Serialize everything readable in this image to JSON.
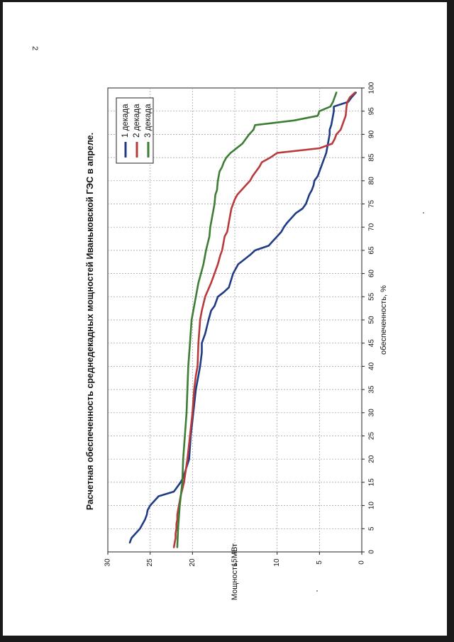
{
  "page": {
    "number": "2"
  },
  "chart_data": {
    "type": "line",
    "title": "Расчетная обеспеченность среднедекадных мощностей Иваньковской ГЭС в апреле.",
    "xlabel": "обеспеченность, %",
    "ylabel": "Мощность, МВт",
    "xlim": [
      0,
      100
    ],
    "ylim": [
      0,
      30
    ],
    "xticks": [
      0,
      5,
      10,
      15,
      20,
      25,
      30,
      35,
      40,
      45,
      50,
      55,
      60,
      65,
      70,
      75,
      80,
      85,
      90,
      95,
      100
    ],
    "yticks": [
      0,
      5,
      10,
      15,
      20,
      25,
      30
    ],
    "grid": true,
    "legend_position": "top-right",
    "colors": {
      "s1": "#1f3b85",
      "s2": "#b83a3a",
      "s3": "#3e7d35",
      "grid": "#9a9a9a"
    },
    "series": [
      {
        "name": "1 декада",
        "x": [
          2,
          3,
          4,
          5,
          6,
          7,
          8,
          9,
          10,
          11,
          12,
          13,
          14,
          15,
          16,
          20,
          25,
          30,
          35,
          40,
          43,
          45,
          47,
          50,
          52,
          53,
          55,
          56,
          57,
          60,
          62,
          63,
          64,
          65,
          66,
          67,
          68,
          69,
          70,
          71,
          72,
          73,
          74,
          75,
          76,
          77,
          78,
          79,
          80,
          81,
          82,
          83,
          84,
          85,
          86,
          87,
          88,
          89,
          90,
          91,
          92,
          93,
          94,
          95,
          96,
          97,
          98,
          99
        ],
        "values": [
          27.4,
          27.2,
          26.7,
          26.2,
          25.9,
          25.6,
          25.4,
          25.3,
          25.0,
          24.5,
          24.0,
          22.2,
          21.8,
          21.4,
          21.1,
          20.4,
          20.2,
          19.9,
          19.6,
          19.1,
          18.9,
          18.9,
          18.5,
          18.1,
          17.8,
          17.4,
          17.0,
          16.3,
          15.7,
          15.2,
          14.6,
          13.9,
          13.2,
          12.6,
          11.0,
          10.5,
          10.0,
          9.5,
          9.2,
          8.8,
          8.3,
          7.8,
          7.0,
          6.6,
          6.4,
          6.2,
          5.9,
          5.7,
          5.6,
          5.2,
          5.0,
          4.8,
          4.6,
          4.4,
          4.2,
          4.1,
          4.0,
          3.9,
          3.8,
          3.8,
          3.6,
          3.5,
          3.4,
          3.3,
          3.3,
          1.6,
          1.2,
          0.7
        ]
      },
      {
        "name": "2 декада",
        "x": [
          1,
          2,
          3,
          4,
          5,
          6,
          7,
          8,
          9,
          10,
          12,
          15,
          20,
          25,
          30,
          35,
          38,
          40,
          45,
          50,
          52,
          55,
          58,
          60,
          62,
          64,
          65,
          66,
          67,
          68,
          69,
          70,
          71,
          72,
          74,
          75,
          76,
          77,
          78,
          79,
          80,
          81,
          82,
          83,
          84,
          85,
          86,
          87,
          88,
          89,
          90,
          91,
          92,
          94,
          96,
          97,
          98,
          99
        ],
        "values": [
          22.2,
          22.1,
          22.0,
          22.0,
          21.9,
          21.9,
          21.8,
          21.8,
          21.7,
          21.6,
          21.4,
          21.0,
          20.6,
          20.3,
          20.0,
          19.8,
          19.6,
          19.4,
          19.3,
          19.1,
          18.9,
          18.5,
          17.8,
          17.4,
          17.0,
          16.7,
          16.5,
          16.4,
          16.3,
          16.2,
          15.9,
          15.8,
          15.7,
          15.6,
          15.4,
          15.2,
          15.0,
          14.7,
          14.2,
          13.7,
          13.2,
          12.9,
          12.5,
          12.1,
          11.8,
          10.8,
          10.0,
          5.0,
          3.5,
          3.2,
          3.0,
          2.5,
          2.3,
          1.9,
          1.8,
          1.7,
          1.4,
          0.8
        ]
      },
      {
        "name": "3 декада",
        "x": [
          1,
          5,
          10,
          15,
          20,
          25,
          30,
          35,
          40,
          45,
          50,
          52,
          55,
          58,
          60,
          62,
          65,
          68,
          70,
          72,
          75,
          77,
          78,
          80,
          81,
          82,
          83,
          84,
          85,
          86,
          87,
          88,
          89,
          90,
          91,
          92,
          93,
          94,
          95,
          96,
          97,
          98,
          99
        ],
        "values": [
          21.8,
          21.7,
          21.5,
          21.2,
          21.1,
          20.9,
          20.7,
          20.6,
          20.5,
          20.3,
          20.1,
          19.9,
          19.6,
          19.3,
          19.0,
          18.7,
          18.4,
          18.0,
          17.9,
          17.7,
          17.4,
          17.3,
          17.1,
          17.0,
          16.9,
          16.8,
          16.5,
          16.3,
          16.0,
          15.5,
          14.8,
          14.1,
          13.7,
          13.3,
          12.8,
          12.6,
          8.0,
          5.2,
          5.0,
          3.7,
          3.4,
          3.2,
          3.0
        ]
      }
    ]
  }
}
